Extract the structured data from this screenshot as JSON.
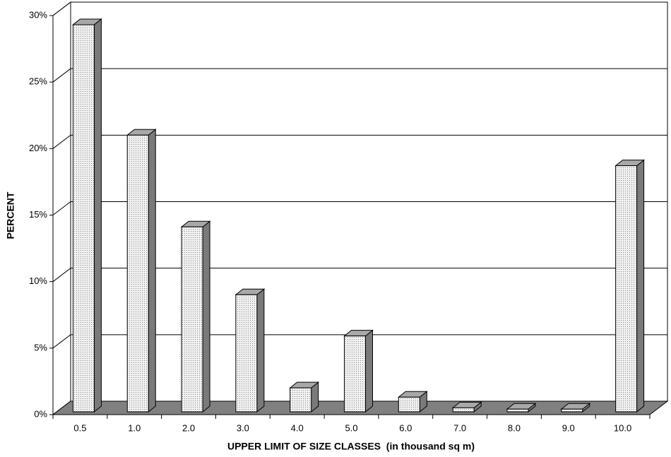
{
  "chart_data": {
    "type": "bar3d",
    "x_label": "UPPER LIMIT OF SIZE CLASSES  (in thousand sq m)",
    "y_label": "PERCENT",
    "categories": [
      "0.5",
      "1.0",
      "2.0",
      "3.0",
      "4.0",
      "5.0",
      "6.0",
      "7.0",
      "8.0",
      "9.0",
      "10.0"
    ],
    "values": [
      29.1,
      20.8,
      13.9,
      8.8,
      1.8,
      5.7,
      1.1,
      0.3,
      0.2,
      0.2,
      18.5
    ],
    "color": "#e6e6e6",
    "ylim": [
      0,
      30
    ],
    "yticks": [
      {
        "value": 0,
        "label": "0%"
      },
      {
        "value": 5,
        "label": "5%"
      },
      {
        "value": 10,
        "label": "10%"
      },
      {
        "value": 15,
        "label": "15%"
      },
      {
        "value": 20,
        "label": "20%"
      },
      {
        "value": 25,
        "label": "25%"
      },
      {
        "value": 30,
        "label": "30%"
      }
    ],
    "grid": true
  }
}
